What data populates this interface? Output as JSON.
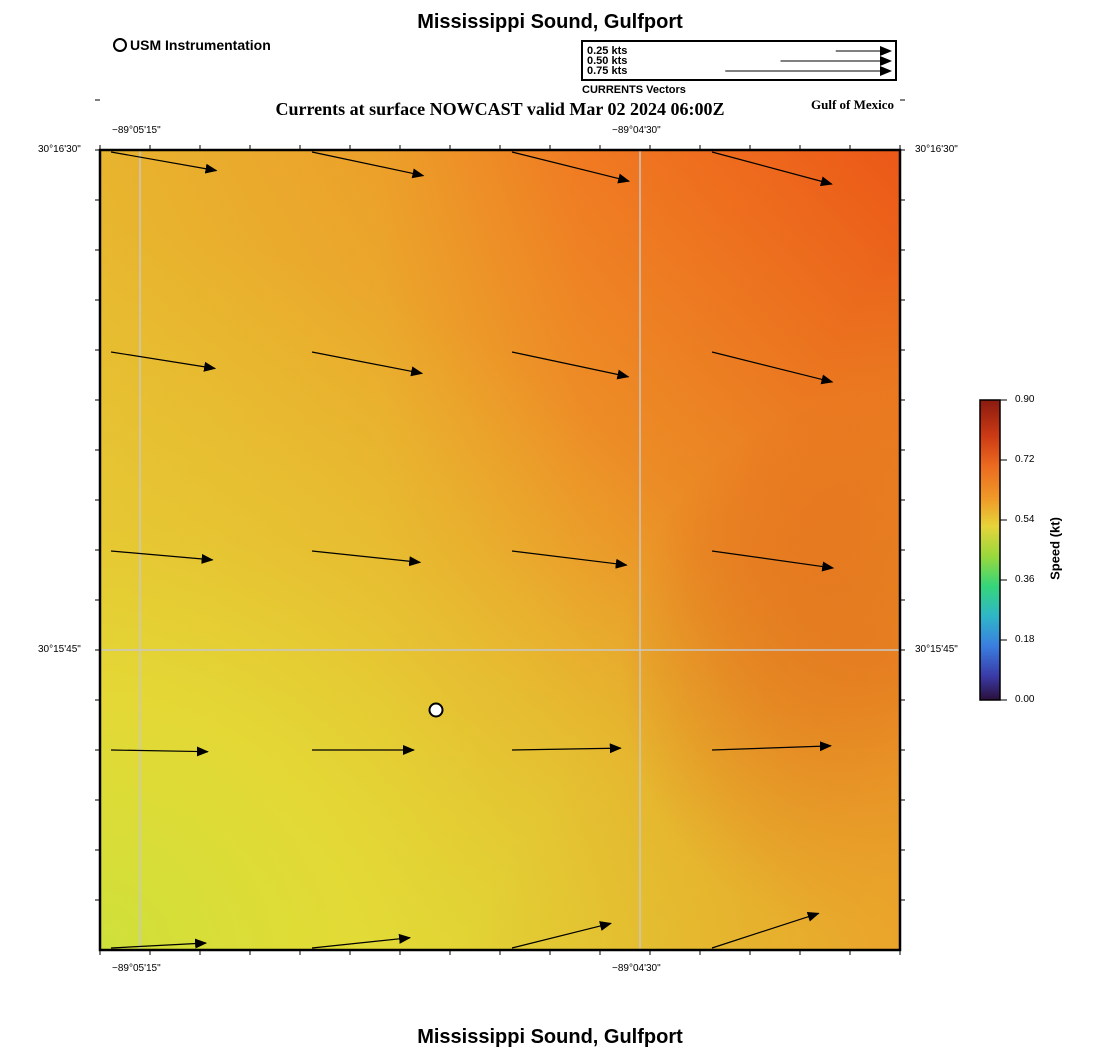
{
  "header": {
    "title": "Mississippi Sound, Gulfport",
    "subtitle": "Currents at surface NOWCAST valid Mar 02 2024 06:00Z",
    "region_label": "Gulf of Mexico"
  },
  "footer": {
    "title": "Mississippi Sound, Gulfport"
  },
  "station_legend": {
    "label": "USM Instrumentation"
  },
  "vector_legend": {
    "caption": "CURRENTS Vectors",
    "rows": [
      {
        "label": "0.25 kts",
        "speed": 0.25
      },
      {
        "label": "0.50 kts",
        "speed": 0.5
      },
      {
        "label": "0.75 kts",
        "speed": 0.75
      }
    ]
  },
  "axes": {
    "top_lon_labels": [
      "−89°05'15\"",
      "−89°04'30\""
    ],
    "bottom_lon_labels": [
      "−89°05'15\"",
      "−89°04'30\""
    ],
    "left_lat_labels": [
      "30°16'30\"",
      "30°15'45\""
    ],
    "right_lat_labels": [
      "30°16'30\"",
      "30°15'45\""
    ]
  },
  "colorbar": {
    "title": "Speed (kt)",
    "ticks": [
      "0.90",
      "0.72",
      "0.54",
      "0.36",
      "0.18",
      "0.00"
    ],
    "colors": [
      "#8a1a10",
      "#e2561c",
      "#f09a28",
      "#e6d43a",
      "#9ad83c",
      "#35d67a",
      "#2fb6c8",
      "#3a7ee0",
      "#3a3aa8",
      "#2a0f3a"
    ]
  },
  "chart_data": {
    "type": "vector-field",
    "units": "kt",
    "vectors": [
      {
        "row": 0,
        "col": 0,
        "speed": 0.63,
        "dir_deg": -10
      },
      {
        "row": 0,
        "col": 1,
        "speed": 0.67,
        "dir_deg": -12
      },
      {
        "row": 0,
        "col": 2,
        "speed": 0.71,
        "dir_deg": -14
      },
      {
        "row": 0,
        "col": 3,
        "speed": 0.73,
        "dir_deg": -15
      },
      {
        "row": 1,
        "col": 0,
        "speed": 0.62,
        "dir_deg": -9
      },
      {
        "row": 1,
        "col": 1,
        "speed": 0.66,
        "dir_deg": -11
      },
      {
        "row": 1,
        "col": 2,
        "speed": 0.7,
        "dir_deg": -12
      },
      {
        "row": 1,
        "col": 3,
        "speed": 0.73,
        "dir_deg": -14
      },
      {
        "row": 2,
        "col": 0,
        "speed": 0.6,
        "dir_deg": -5
      },
      {
        "row": 2,
        "col": 1,
        "speed": 0.64,
        "dir_deg": -6
      },
      {
        "row": 2,
        "col": 2,
        "speed": 0.68,
        "dir_deg": -7
      },
      {
        "row": 2,
        "col": 3,
        "speed": 0.72,
        "dir_deg": -8
      },
      {
        "row": 3,
        "col": 0,
        "speed": 0.57,
        "dir_deg": -1
      },
      {
        "row": 3,
        "col": 1,
        "speed": 0.6,
        "dir_deg": 0
      },
      {
        "row": 3,
        "col": 2,
        "speed": 0.64,
        "dir_deg": 1
      },
      {
        "row": 3,
        "col": 3,
        "speed": 0.7,
        "dir_deg": 2
      },
      {
        "row": 4,
        "col": 0,
        "speed": 0.56,
        "dir_deg": 3
      },
      {
        "row": 4,
        "col": 1,
        "speed": 0.58,
        "dir_deg": 6
      },
      {
        "row": 4,
        "col": 2,
        "speed": 0.6,
        "dir_deg": 14
      },
      {
        "row": 4,
        "col": 3,
        "speed": 0.66,
        "dir_deg": 18
      }
    ],
    "stations": [
      {
        "name": "USM Instrumentation",
        "lon_fraction": 0.42,
        "lat_fraction": 0.075
      }
    ]
  }
}
